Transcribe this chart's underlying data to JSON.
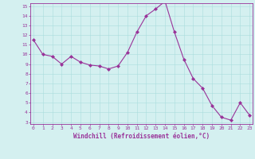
{
  "x": [
    0,
    1,
    2,
    3,
    4,
    5,
    6,
    7,
    8,
    9,
    10,
    11,
    12,
    13,
    14,
    15,
    16,
    17,
    18,
    19,
    20,
    21,
    22,
    23
  ],
  "y": [
    11.5,
    10.0,
    9.8,
    9.0,
    9.8,
    9.2,
    8.9,
    8.8,
    8.5,
    8.8,
    10.2,
    12.3,
    14.0,
    14.7,
    15.5,
    12.3,
    9.5,
    7.5,
    6.5,
    4.7,
    3.5,
    3.2,
    5.0,
    3.7
  ],
  "line_color": "#993399",
  "marker": "D",
  "marker_size": 2,
  "bg_color": "#d4f0f0",
  "grid_color": "#aadddd",
  "xlabel": "Windchill (Refroidissement éolien,°C)",
  "ylabel": "",
  "ylim_min": 3,
  "ylim_max": 15,
  "xlim_min": 0,
  "xlim_max": 23,
  "yticks": [
    3,
    4,
    5,
    6,
    7,
    8,
    9,
    10,
    11,
    12,
    13,
    14,
    15
  ],
  "xticks": [
    0,
    1,
    2,
    3,
    4,
    5,
    6,
    7,
    8,
    9,
    10,
    11,
    12,
    13,
    14,
    15,
    16,
    17,
    18,
    19,
    20,
    21,
    22,
    23
  ],
  "tick_color": "#993399",
  "label_color": "#993399",
  "spine_color": "#993399",
  "tick_fontsize": 4.5,
  "xlabel_fontsize": 5.5,
  "linewidth": 0.8
}
